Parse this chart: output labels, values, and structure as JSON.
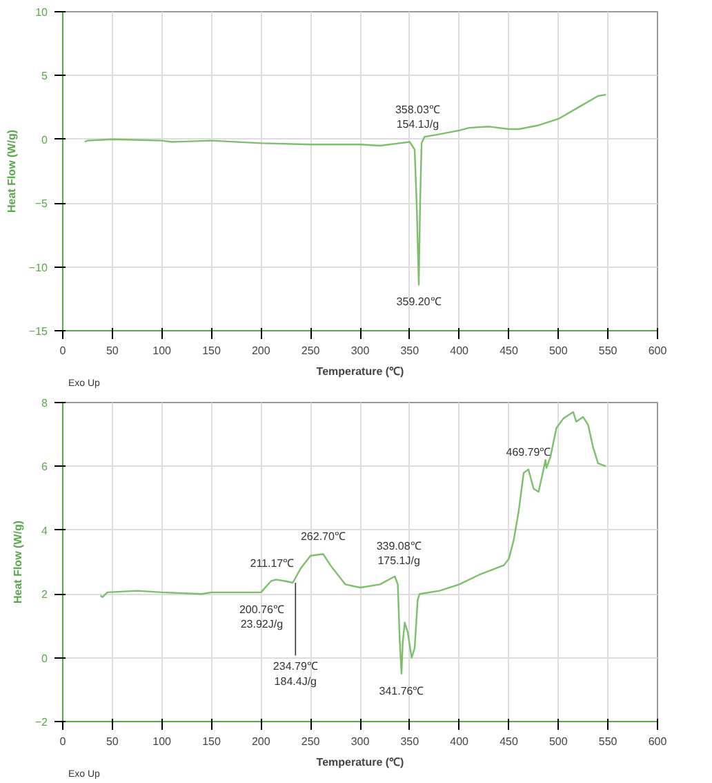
{
  "chart_data": [
    {
      "type": "line",
      "xlabel": "Temperature (℃)",
      "ylabel": "Heat Flow (W/g)",
      "xlim": [
        0,
        600
      ],
      "ylim": [
        -15,
        10
      ],
      "xticks": [
        0,
        50,
        100,
        150,
        200,
        250,
        300,
        350,
        400,
        450,
        500,
        550,
        600
      ],
      "yticks": [
        -15,
        -10,
        -5,
        0,
        5,
        10
      ],
      "grid": true,
      "x": [
        22,
        25,
        50,
        100,
        110,
        150,
        200,
        250,
        300,
        320,
        340,
        350,
        355,
        357,
        359.2,
        360.5,
        362,
        365,
        380,
        400,
        410,
        430,
        450,
        460,
        480,
        500,
        520,
        540,
        548
      ],
      "series": [
        {
          "color": "#7cbf6a",
          "values": [
            -0.2,
            -0.1,
            0,
            -0.1,
            -0.2,
            -0.1,
            -0.3,
            -0.4,
            -0.4,
            -0.5,
            -0.3,
            -0.2,
            -0.8,
            -5,
            -11.4,
            -5,
            -0.3,
            0.2,
            0.4,
            0.7,
            0.9,
            1.0,
            0.8,
            0.8,
            1.1,
            1.6,
            2.5,
            3.4,
            3.5
          ]
        }
      ],
      "annotations": [
        {
          "text": "358.03℃\n154.1J/g",
          "x": 358.03,
          "y": -0.2
        },
        {
          "text": "359.20℃",
          "x": 359.2,
          "y": -11.4
        },
        "Exo Up"
      ]
    },
    {
      "type": "line",
      "xlabel": "Temperature (℃)",
      "ylabel": "Heat Flow (W/g)",
      "xlim": [
        0,
        600
      ],
      "ylim": [
        -2,
        8
      ],
      "xticks": [
        0,
        50,
        100,
        150,
        200,
        250,
        300,
        350,
        400,
        450,
        500,
        550,
        600
      ],
      "yticks": [
        -2,
        0,
        2,
        4,
        6,
        8
      ],
      "grid": true,
      "x": [
        38,
        40,
        45,
        75,
        100,
        140,
        150,
        195,
        200,
        210,
        215,
        225,
        232,
        240,
        250,
        262.7,
        270,
        285,
        300,
        320,
        335,
        338,
        340,
        341.76,
        343,
        345,
        348,
        352,
        355,
        358,
        360,
        380,
        400,
        420,
        445,
        450,
        455,
        460,
        465,
        469.8,
        475,
        480,
        485,
        487,
        488,
        492,
        498,
        505,
        515,
        518,
        525,
        530,
        535,
        540,
        548
      ],
      "series": [
        {
          "color": "#7cbf6a",
          "values": [
            1.95,
            1.9,
            2.05,
            2.1,
            2.05,
            2.0,
            2.05,
            2.05,
            2.05,
            2.4,
            2.45,
            2.4,
            2.35,
            2.8,
            3.2,
            3.25,
            2.9,
            2.3,
            2.2,
            2.3,
            2.55,
            2.3,
            0.5,
            -0.5,
            0.5,
            1.1,
            0.8,
            0,
            0.3,
            1.8,
            2.0,
            2.1,
            2.3,
            2.6,
            2.9,
            3.1,
            3.7,
            4.6,
            5.8,
            5.9,
            5.3,
            5.2,
            5.9,
            6.2,
            5.95,
            6.3,
            7.2,
            7.5,
            7.7,
            7.4,
            7.55,
            7.3,
            6.6,
            6.1,
            6.0
          ]
        }
      ],
      "annotations": [
        {
          "text": "469.79℃",
          "x": 469.8,
          "y": 5.9
        },
        {
          "text": "262.70℃",
          "x": 262.7,
          "y": 3.25
        },
        {
          "text": "211.17℃",
          "x": 211.17,
          "y": 2.41
        },
        {
          "text": "339.08℃\n175.1J/g",
          "x": 339.08,
          "y": 2.5
        },
        {
          "text": "200.76℃\n23.92J/g",
          "x": 200.76,
          "y": 2.05
        },
        {
          "text": "234.79℃\n184.4J/g",
          "x": 234.79,
          "y": 2.35
        },
        {
          "text": "341.76℃",
          "x": 341.76,
          "y": -0.5
        },
        "Exo Up"
      ]
    }
  ]
}
